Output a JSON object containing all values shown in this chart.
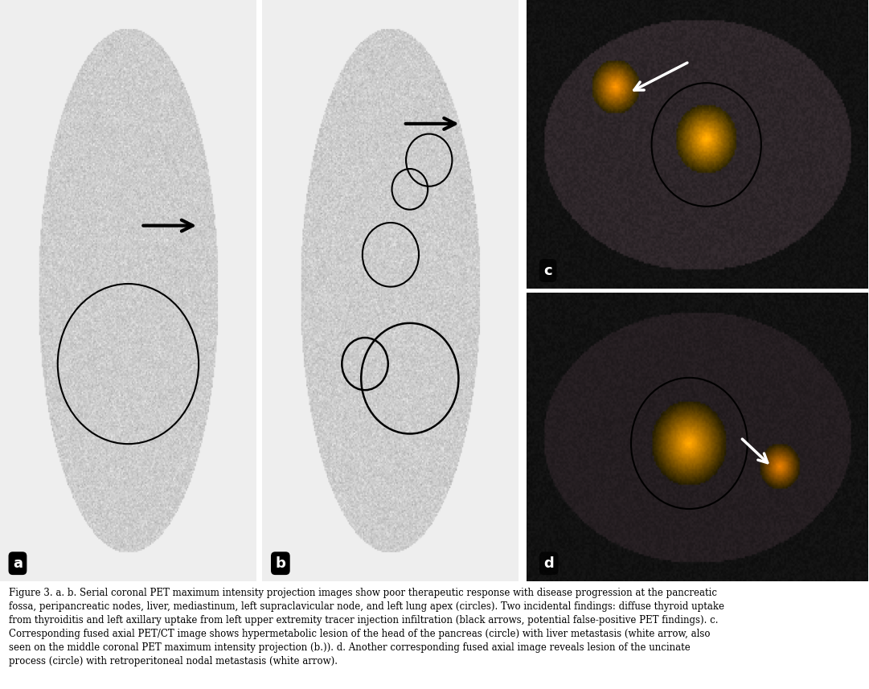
{
  "figure_width": 10.81,
  "figure_height": 8.57,
  "bg_color": "#ffffff",
  "panel_bg_a": "#d8d8d8",
  "panel_bg_b": "#d8d8d8",
  "panel_bg_c": "#1a1a2e",
  "panel_bg_d": "#1a1a2e",
  "caption": "Figure 3. a. b. Serial coronal PET maximum intensity projection images show poor therapeutic response with disease progression at the pancreatic\nfossa, peripancreatic nodes, liver, mediastinum, left supraclavicular node, and left lung apex (circles). Two incidental findings: diffuse thyroid uptake\nfrom thyroiditis and left axillary uptake from left upper extremity tracer injection infiltration (black arrows, potential false-positive PET findings). c.\nCorresponding fused axial PET/CT image shows hypermetabolic lesion of the head of the pancreas (circle) with liver metastasis (white arrow, also\nseen on the middle coronal PET maximum intensity projection (b.)). d. Another corresponding fused axial image reveals lesion of the uncinate\nprocess (circle) with retroperitoneal nodal metastasis (white arrow).",
  "caption_fontsize": 8.5,
  "label_fontsize": 13,
  "panels": {
    "a": {
      "label": "a",
      "label_color": "white",
      "label_bg": "black"
    },
    "b": {
      "label": "b",
      "label_color": "white",
      "label_bg": "black"
    },
    "c": {
      "label": "c",
      "label_color": "white",
      "label_bg": "black"
    },
    "d": {
      "label": "d",
      "label_color": "white",
      "label_bg": "black"
    }
  }
}
